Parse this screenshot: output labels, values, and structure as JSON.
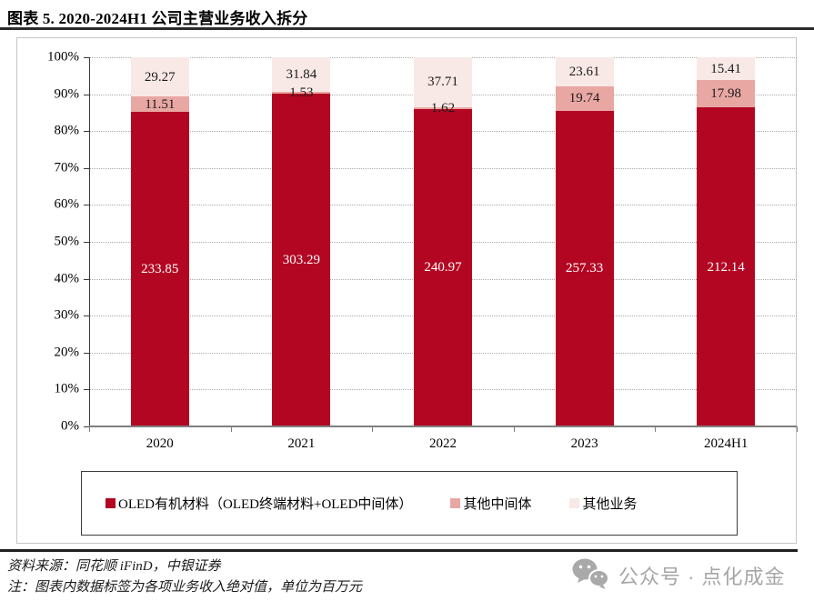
{
  "title": "图表 5. 2020-2024H1 公司主营业务收入拆分",
  "chart_data": {
    "type": "bar",
    "stacked": true,
    "stacking": "percent",
    "categories": [
      "2020",
      "2021",
      "2022",
      "2023",
      "2024H1"
    ],
    "series": [
      {
        "name": "OLED有机材料（OLED终端材料+OLED中间体）",
        "color": "#b30622",
        "label_color": "#ffffff",
        "values": [
          233.85,
          303.29,
          240.97,
          257.33,
          212.14
        ]
      },
      {
        "name": "其他中间体",
        "color": "#e9a7a3",
        "label_color": "#1a1a1a",
        "values": [
          11.51,
          1.53,
          1.62,
          19.74,
          17.98
        ]
      },
      {
        "name": "其他业务",
        "color": "#f8e9e6",
        "label_color": "#1a1a1a",
        "values": [
          29.27,
          31.84,
          37.71,
          23.61,
          15.41
        ]
      }
    ],
    "y_tick_labels": [
      "0%",
      "10%",
      "20%",
      "30%",
      "40%",
      "50%",
      "60%",
      "70%",
      "80%",
      "90%",
      "100%"
    ],
    "ylim": [
      0,
      100
    ],
    "grid": "horizontal-dotted",
    "legend_position": "bottom-boxed",
    "value_label_format": "2-decimals",
    "unit_note": "百万元"
  },
  "footer": {
    "source": "资料来源：同花顺 iFinD，中银证券",
    "note": "注：图表内数据标签为各项业务收入绝对值，单位为百万元"
  },
  "watermark": {
    "icon": "wechat-icon",
    "text": "公众号 · 点化成金"
  }
}
